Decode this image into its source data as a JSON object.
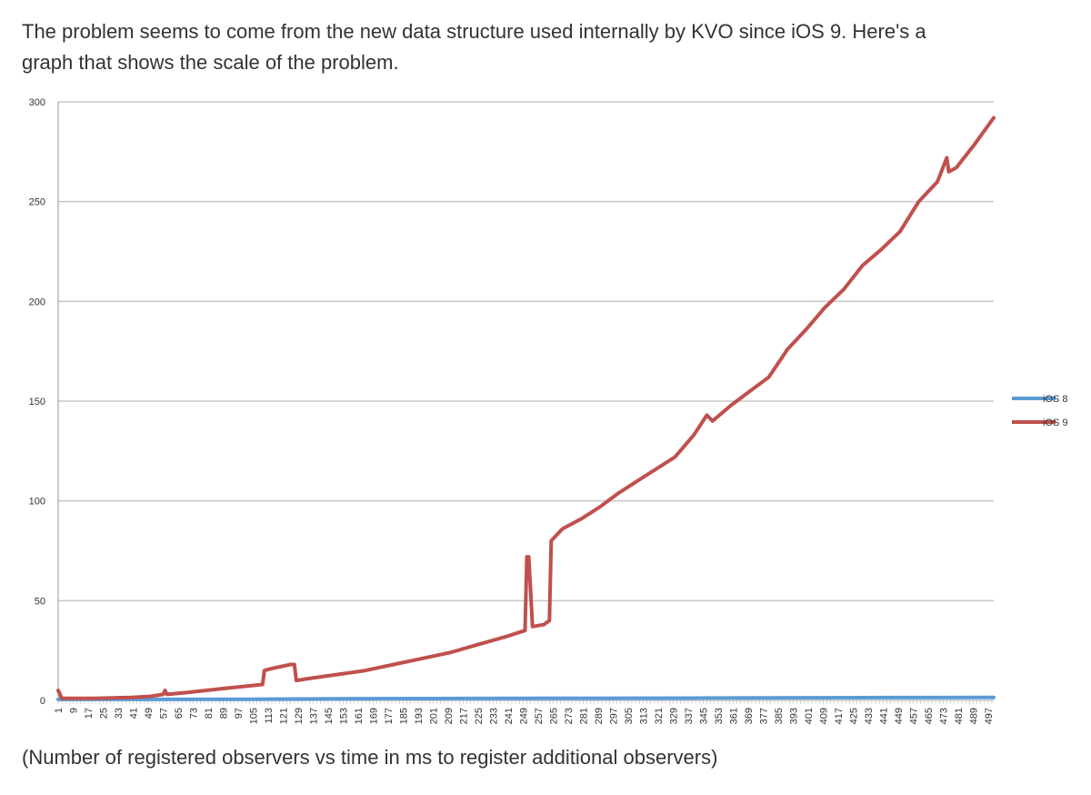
{
  "intro": {
    "line1": "The problem seems to come from the new data structure used internally by KVO since iOS 9. Here's a",
    "line2": "graph that shows the scale of the problem."
  },
  "caption": "(Number of registered observers vs time in ms to register additional observers)",
  "colors": {
    "ios8": "#5b9bd5",
    "ios9": "#c0504d",
    "grid": "#c8c8c8",
    "axis": "#999999"
  },
  "chart_data": {
    "type": "line",
    "title": "",
    "xlabel": "",
    "ylabel": "",
    "ylim": [
      0,
      300
    ],
    "yticks": [
      0,
      50,
      100,
      150,
      200,
      250,
      300
    ],
    "xlim": [
      1,
      500
    ],
    "xtick_labels": [
      "1",
      "9",
      "17",
      "25",
      "33",
      "41",
      "49",
      "57",
      "65",
      "73",
      "81",
      "89",
      "97",
      "105",
      "113",
      "121",
      "129",
      "137",
      "145",
      "153",
      "161",
      "169",
      "177",
      "185",
      "193",
      "201",
      "209",
      "217",
      "225",
      "233",
      "241",
      "249",
      "257",
      "265",
      "273",
      "281",
      "289",
      "297",
      "305",
      "313",
      "321",
      "329",
      "337",
      "345",
      "353",
      "361",
      "369",
      "377",
      "385",
      "393",
      "401",
      "409",
      "417",
      "425",
      "433",
      "441",
      "449",
      "457",
      "465",
      "473",
      "481",
      "489",
      "497"
    ],
    "grid": true,
    "legend_position": "right",
    "series": [
      {
        "name": "iOS 8",
        "points": [
          [
            1,
            0.5
          ],
          [
            50,
            0.5
          ],
          [
            100,
            0.6
          ],
          [
            150,
            0.8
          ],
          [
            200,
            0.9
          ],
          [
            250,
            1.0
          ],
          [
            300,
            1.1
          ],
          [
            350,
            1.2
          ],
          [
            400,
            1.3
          ],
          [
            450,
            1.4
          ],
          [
            500,
            1.5
          ]
        ]
      },
      {
        "name": "iOS 9",
        "points": [
          [
            1,
            5
          ],
          [
            3,
            1
          ],
          [
            20,
            1
          ],
          [
            40,
            1.5
          ],
          [
            50,
            2
          ],
          [
            57,
            3
          ],
          [
            58,
            5
          ],
          [
            59,
            3
          ],
          [
            70,
            4
          ],
          [
            80,
            5
          ],
          [
            90,
            6
          ],
          [
            100,
            7
          ],
          [
            110,
            8
          ],
          [
            111,
            15
          ],
          [
            115,
            16
          ],
          [
            125,
            18
          ],
          [
            127,
            18
          ],
          [
            128,
            10
          ],
          [
            135,
            11
          ],
          [
            150,
            13
          ],
          [
            165,
            15
          ],
          [
            180,
            18
          ],
          [
            195,
            21
          ],
          [
            210,
            24
          ],
          [
            225,
            28
          ],
          [
            240,
            32
          ],
          [
            250,
            35
          ],
          [
            251,
            72
          ],
          [
            252,
            72
          ],
          [
            254,
            37
          ],
          [
            260,
            38
          ],
          [
            263,
            40
          ],
          [
            264,
            80
          ],
          [
            270,
            86
          ],
          [
            280,
            91
          ],
          [
            290,
            97
          ],
          [
            300,
            104
          ],
          [
            310,
            110
          ],
          [
            320,
            116
          ],
          [
            330,
            122
          ],
          [
            340,
            133
          ],
          [
            347,
            143
          ],
          [
            350,
            140
          ],
          [
            360,
            148
          ],
          [
            370,
            155
          ],
          [
            380,
            162
          ],
          [
            390,
            176
          ],
          [
            400,
            186
          ],
          [
            410,
            197
          ],
          [
            420,
            206
          ],
          [
            430,
            218
          ],
          [
            440,
            226
          ],
          [
            450,
            235
          ],
          [
            460,
            250
          ],
          [
            470,
            260
          ],
          [
            475,
            272
          ],
          [
            476,
            265
          ],
          [
            480,
            267
          ],
          [
            490,
            279
          ],
          [
            500,
            292
          ]
        ]
      }
    ]
  }
}
